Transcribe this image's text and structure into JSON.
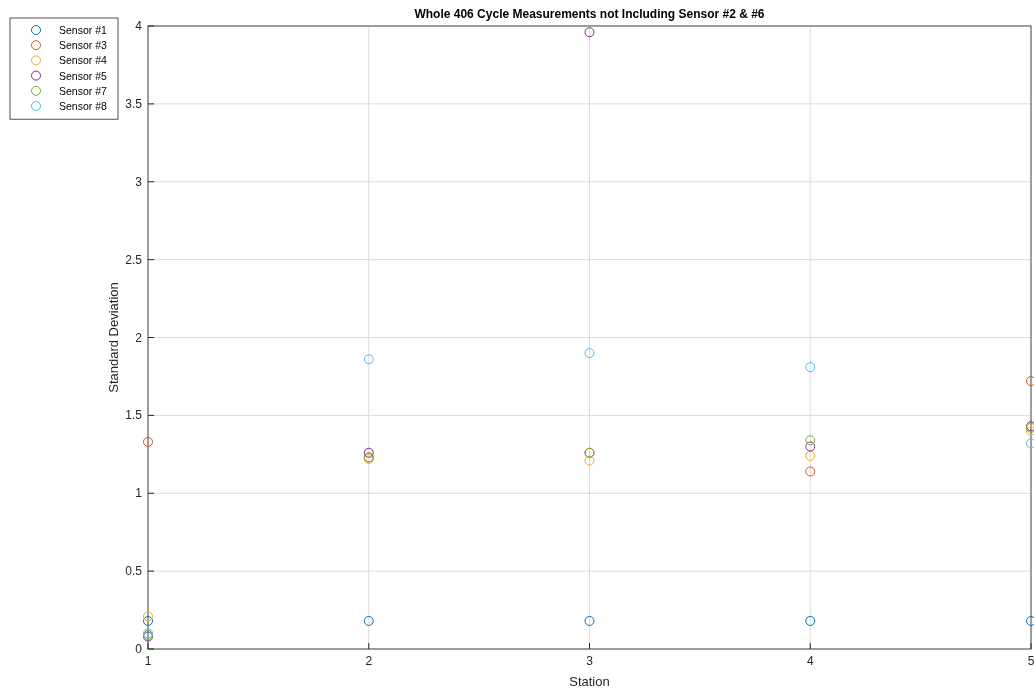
{
  "chart_data": {
    "type": "scatter",
    "title": "Whole 406 Cycle Measurements not Including Sensor #2 & #6",
    "xlabel": "Station",
    "ylabel": "Standard Deviation",
    "x": [
      1,
      2,
      3,
      4,
      5
    ],
    "xlim": [
      1,
      5
    ],
    "xticks": [
      1,
      2,
      3,
      4,
      5
    ],
    "ylim": [
      0,
      4
    ],
    "yticks": [
      0,
      0.5,
      1,
      1.5,
      2,
      2.5,
      3,
      3.5,
      4
    ],
    "grid": true,
    "legend": "top left",
    "marker": "circle",
    "series": [
      {
        "name": "Sensor #1",
        "color": "#0072bd",
        "values": [
          0.18,
          0.18,
          0.18,
          0.18,
          0.18
        ]
      },
      {
        "name": "Sensor #3",
        "color": "#d95319",
        "values": [
          1.33,
          1.23,
          1.26,
          1.14,
          1.72
        ]
      },
      {
        "name": "Sensor #4",
        "color": "#edb120",
        "values": [
          0.21,
          1.22,
          1.21,
          1.24,
          1.4
        ]
      },
      {
        "name": "Sensor #5",
        "color": "#7e2f8e",
        "values": [
          0.08,
          1.26,
          3.96,
          1.3,
          1.43
        ]
      },
      {
        "name": "Sensor #7",
        "color": "#77ac30",
        "values": [
          0.09,
          1.23,
          1.26,
          1.34,
          1.42
        ]
      },
      {
        "name": "Sensor #8",
        "color": "#4dbeee",
        "values": [
          0.1,
          1.86,
          1.9,
          1.81,
          1.32
        ]
      }
    ]
  }
}
